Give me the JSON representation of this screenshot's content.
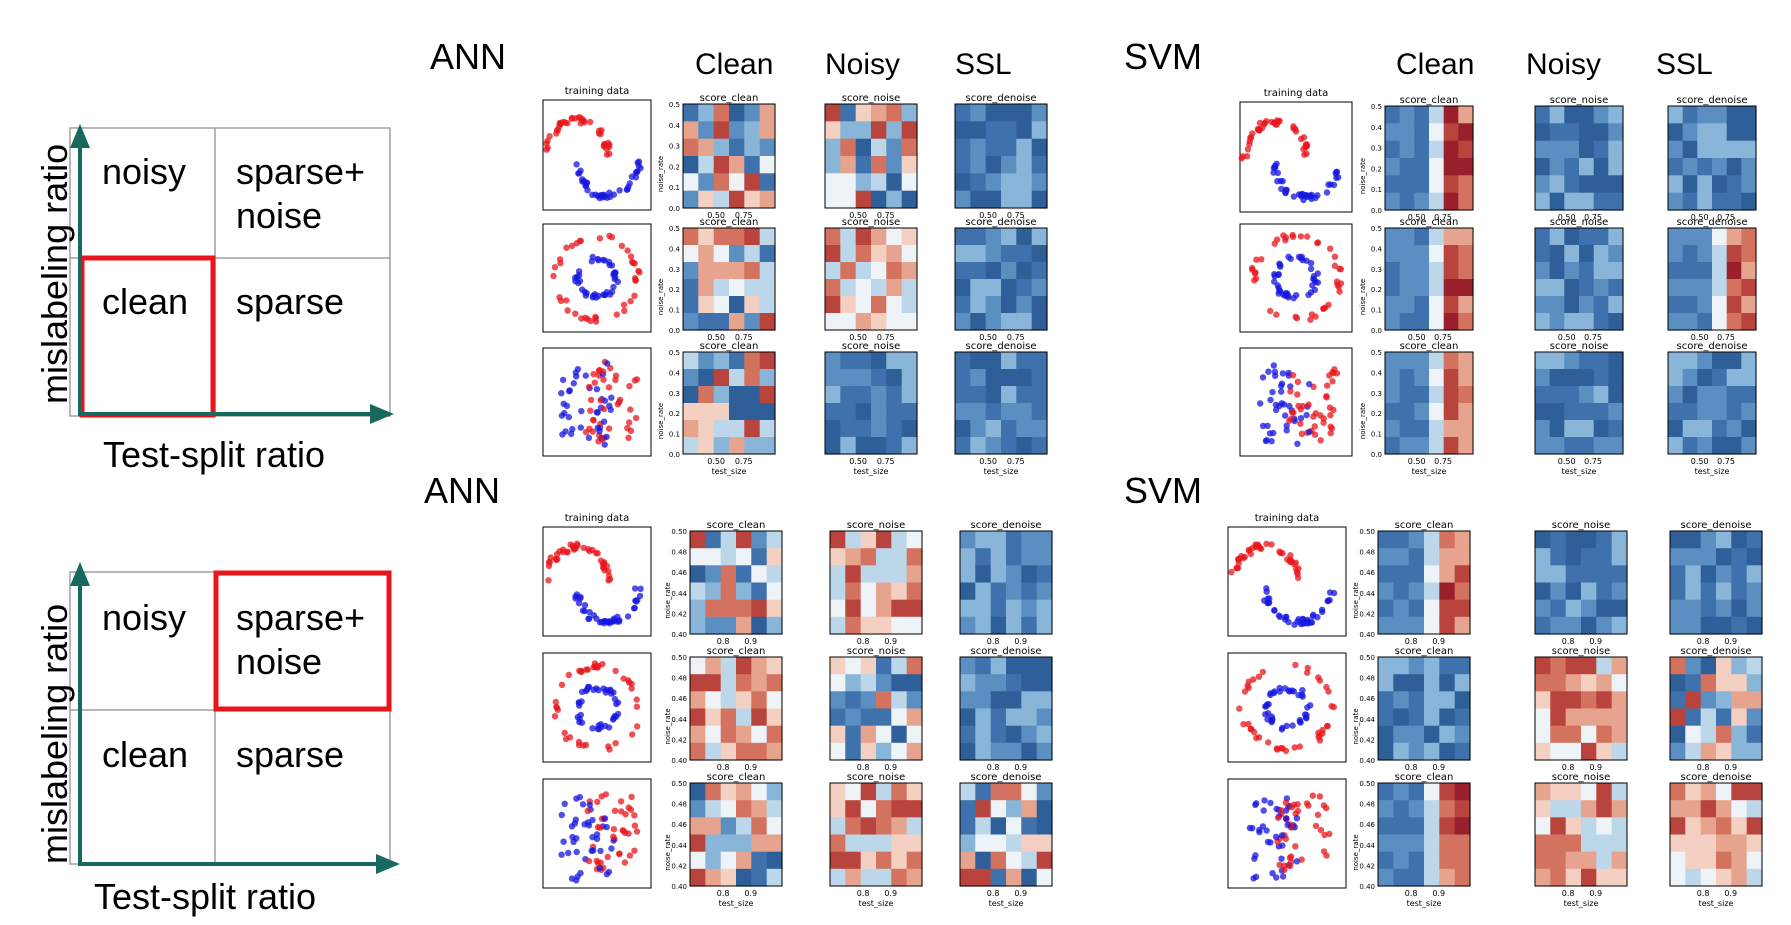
{
  "diagrams": [
    {
      "cells": {
        "top_left": "noisy",
        "top_right": [
          "sparse+",
          "noise"
        ],
        "bottom_left": "clean",
        "bottom_right": "sparse"
      },
      "highlight": "bottom_left",
      "x_axis_label": "Test-split ratio",
      "y_axis_label": "mislabeling ratio"
    },
    {
      "cells": {
        "top_left": "noisy",
        "top_right": [
          "sparse+",
          "noise"
        ],
        "bottom_left": "clean",
        "bottom_right": "sparse"
      },
      "highlight": "top_right",
      "x_axis_label": "Test-split ratio",
      "y_axis_label": "mislabeling ratio"
    }
  ],
  "colors": {
    "axis": "#16695c",
    "highlight": "#e8161b",
    "grid": "#a0a0a0",
    "class_a": "#e8161b",
    "class_b": "#1616e0"
  },
  "panels": [
    {
      "model": "ANN",
      "column_headers": [
        "Clean",
        "Noisy",
        "SSL"
      ],
      "plot_titles": [
        "training data",
        "score_clean",
        "score_noise",
        "score_denoise"
      ],
      "xlabel": "test_size",
      "ylabel": "noise_rate",
      "x_ticks": [
        "0.50",
        "0.75"
      ],
      "y_ticks": [
        "0.0",
        "0.1",
        "0.2",
        "0.3",
        "0.4",
        "0.5"
      ]
    },
    {
      "model": "SVM",
      "column_headers": [
        "Clean",
        "Noisy",
        "SSL"
      ],
      "plot_titles": [
        "training data",
        "score_clean",
        "score_noise",
        "score_denoise"
      ],
      "xlabel": "test_size",
      "ylabel": "noise_rate",
      "x_ticks": [
        "0.50",
        "0.75"
      ],
      "y_ticks": [
        "0.0",
        "0.1",
        "0.2",
        "0.3",
        "0.4",
        "0.5"
      ]
    },
    {
      "model": "ANN",
      "column_headers": [],
      "plot_titles": [
        "training data",
        "score_clean",
        "score_noise",
        "score_denoise"
      ],
      "xlabel": "test_size",
      "ylabel": "noise_rate",
      "x_ticks": [
        "0.8",
        "0.9"
      ],
      "y_ticks": [
        "0.40",
        "0.42",
        "0.44",
        "0.46",
        "0.48",
        "0.50"
      ]
    },
    {
      "model": "SVM",
      "column_headers": [],
      "plot_titles": [
        "training data",
        "score_clean",
        "score_noise",
        "score_denoise"
      ],
      "xlabel": "test_size",
      "ylabel": "noise_rate",
      "x_ticks": [
        "0.8",
        "0.9"
      ],
      "y_ticks": [
        "0.40",
        "0.42",
        "0.44",
        "0.46",
        "0.48",
        "0.50"
      ]
    }
  ]
}
